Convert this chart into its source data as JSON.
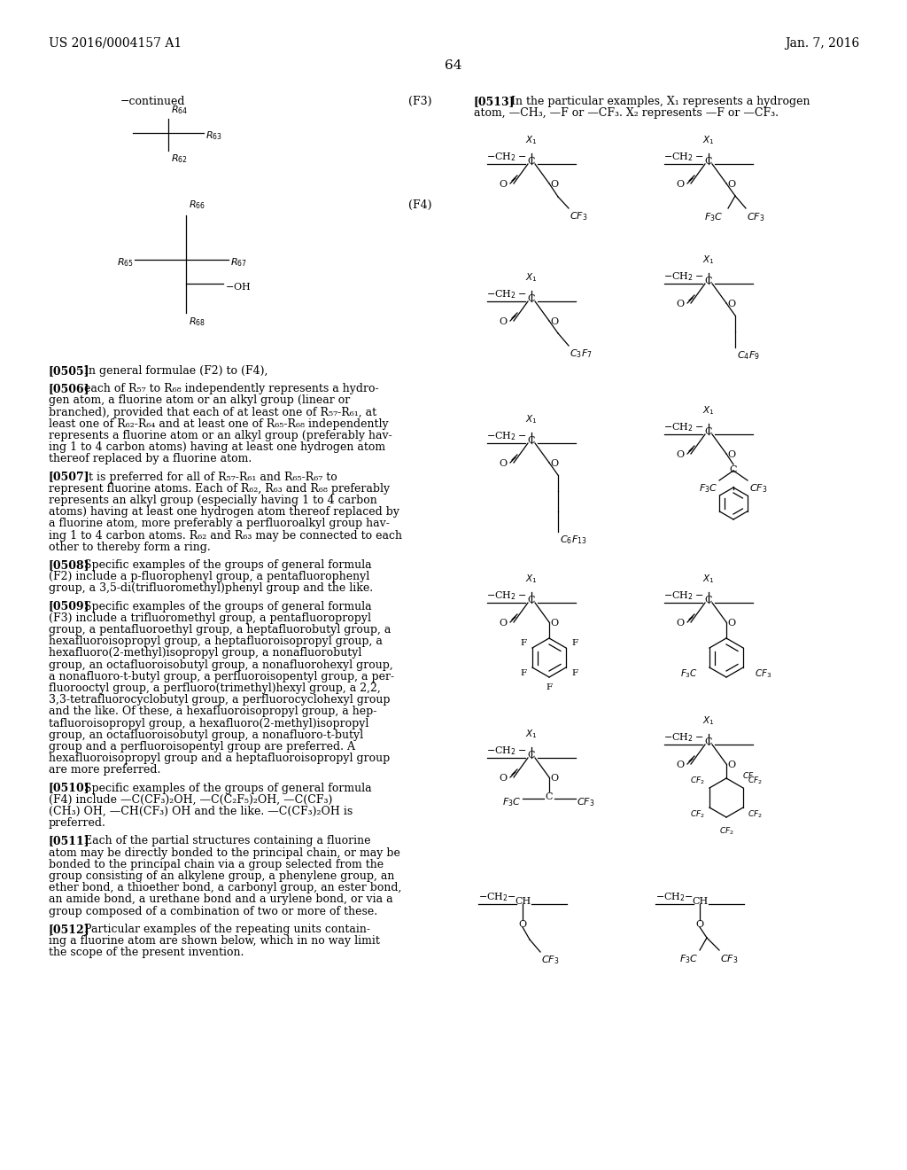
{
  "bg": "#ffffff",
  "header_left": "US 2016/0004157 A1",
  "header_right": "Jan. 7, 2016",
  "page_num": "64"
}
